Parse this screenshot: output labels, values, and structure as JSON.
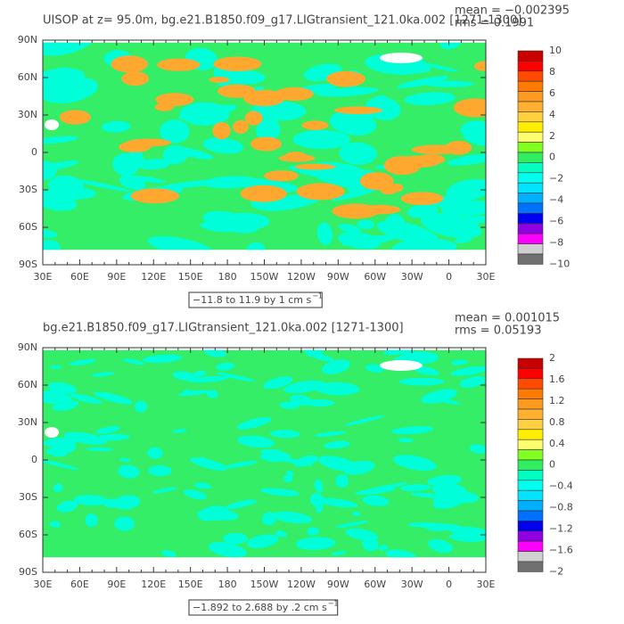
{
  "panels": [
    {
      "title": "UISOP at z=  95.0m, bg.e21.B1850.f09_g17.LIGtransient_121.0ka.002 [1271-1300]",
      "mean": "mean = −0.002395",
      "rms": "rms = 0.1991",
      "range_label": "−11.8 to 11.9 by 1 cm s",
      "range_unit_exponent": "−1",
      "y_labels": [
        "90N",
        "60N",
        "30N",
        "0",
        "30S",
        "60S",
        "90S"
      ],
      "x_labels": [
        "30E",
        "60E",
        "90E",
        "120E",
        "150E",
        "180",
        "150W",
        "120W",
        "90W",
        "60W",
        "30W",
        "0",
        "30E"
      ],
      "colorbar_labels": [
        "10",
        "8",
        "6",
        "4",
        "2",
        "0",
        "−2",
        "−4",
        "−6",
        "−8",
        "−10"
      ],
      "colorbar_colors": [
        "#c80000",
        "#ff0000",
        "#ff4a00",
        "#ff7a00",
        "#ff9a20",
        "#ffb030",
        "#ffd040",
        "#ffee00",
        "#ffff70",
        "#80ff20",
        "#30ee60",
        "#00ffc0",
        "#00ffee",
        "#00e4ff",
        "#00b0ff",
        "#0070ff",
        "#0000f0",
        "#9000e0",
        "#ff00ff",
        "#d0d0d0"
      ]
    },
    {
      "title": "bg.e21.B1850.f09_g17.LIGtransient_121.0ka.002 [1271-1300]",
      "mean": "mean = 0.001015",
      "rms": "rms = 0.05193",
      "range_label": "−1.892 to 2.688 by .2 cm s",
      "range_unit_exponent": "−1",
      "y_labels": [
        "90N",
        "60N",
        "30N",
        "0",
        "30S",
        "60S",
        "90S"
      ],
      "x_labels": [
        "30E",
        "60E",
        "90E",
        "120E",
        "150E",
        "180",
        "150W",
        "120W",
        "90W",
        "60W",
        "30W",
        "0",
        "30E"
      ],
      "colorbar_labels": [
        "2",
        "1.6",
        "1.2",
        "0.8",
        "0.4",
        "0",
        "−0.4",
        "−0.8",
        "−1.2",
        "−1.6",
        "−2"
      ],
      "colorbar_colors": [
        "#c80000",
        "#ff0000",
        "#ff4a00",
        "#ff7a00",
        "#ff9a20",
        "#ffb030",
        "#ffd040",
        "#ffee00",
        "#ffff70",
        "#80ff20",
        "#30ee60",
        "#00ffc0",
        "#00ffee",
        "#00e4ff",
        "#00b0ff",
        "#0070ff",
        "#0000f0",
        "#9000e0",
        "#ff00ff",
        "#d0d0d0"
      ]
    }
  ]
}
